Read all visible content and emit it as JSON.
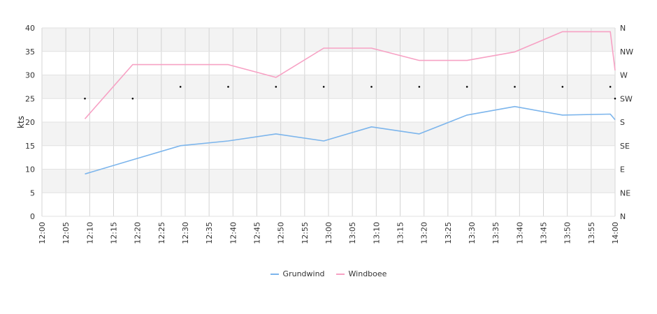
{
  "chart_data": {
    "type": "line",
    "ylabel": "kts",
    "ylim": [
      0,
      40
    ],
    "yticks": [
      0,
      5,
      10,
      15,
      20,
      25,
      30,
      35,
      40
    ],
    "ytick_labels": [
      "0",
      "5",
      "10",
      "15",
      "20",
      "25",
      "30",
      "35",
      "40"
    ],
    "y2ticks": [
      "N",
      "NE",
      "E",
      "SE",
      "S",
      "SW",
      "W",
      "NW",
      "N"
    ],
    "xticks": [
      "12:00",
      "12:05",
      "12:10",
      "12:15",
      "12:20",
      "12:25",
      "12:30",
      "12:35",
      "12:40",
      "12:45",
      "12:50",
      "12:55",
      "13:00",
      "13:05",
      "13:10",
      "13:15",
      "13:20",
      "13:25",
      "13:30",
      "13:35",
      "13:40",
      "13:45",
      "13:50",
      "13:55",
      "14:00"
    ],
    "xlim": [
      "12:00",
      "14:00"
    ],
    "grid": true,
    "legend": "bottom",
    "series": [
      {
        "name": "Grundwind",
        "color": "#7cb5ec",
        "points": [
          [
            "12:09",
            9
          ],
          [
            "12:19",
            12
          ],
          [
            "12:29",
            15
          ],
          [
            "12:39",
            16
          ],
          [
            "12:49",
            17.5
          ],
          [
            "12:59",
            16
          ],
          [
            "13:09",
            19
          ],
          [
            "13:19",
            17.5
          ],
          [
            "13:29",
            21.5
          ],
          [
            "13:39",
            23.3
          ],
          [
            "13:49",
            21.5
          ],
          [
            "13:59",
            21.7
          ],
          [
            "14:00",
            20.5
          ]
        ]
      },
      {
        "name": "Windboee",
        "color": "#f7a1c4",
        "points": [
          [
            "12:09",
            20.7
          ],
          [
            "12:19",
            32.2
          ],
          [
            "12:29",
            32.2
          ],
          [
            "12:39",
            32.2
          ],
          [
            "12:49",
            29.5
          ],
          [
            "12:59",
            35.7
          ],
          [
            "13:09",
            35.7
          ],
          [
            "13:19",
            33.1
          ],
          [
            "13:29",
            33.1
          ],
          [
            "13:39",
            34.9
          ],
          [
            "13:49",
            39.2
          ],
          [
            "13:59",
            39.2
          ],
          [
            "14:00",
            31
          ]
        ]
      }
    ],
    "direction_markers": {
      "color": "#000000",
      "points": [
        [
          "12:09",
          "SW"
        ],
        [
          "12:19",
          "SW"
        ],
        [
          "12:29",
          "WSW"
        ],
        [
          "12:39",
          "WSW"
        ],
        [
          "12:49",
          "WSW"
        ],
        [
          "12:59",
          "WSW"
        ],
        [
          "13:09",
          "WSW"
        ],
        [
          "13:19",
          "WSW"
        ],
        [
          "13:29",
          "WSW"
        ],
        [
          "13:39",
          "WSW"
        ],
        [
          "13:49",
          "WSW"
        ],
        [
          "13:59",
          "WSW"
        ],
        [
          "14:00",
          "SW"
        ]
      ]
    }
  }
}
